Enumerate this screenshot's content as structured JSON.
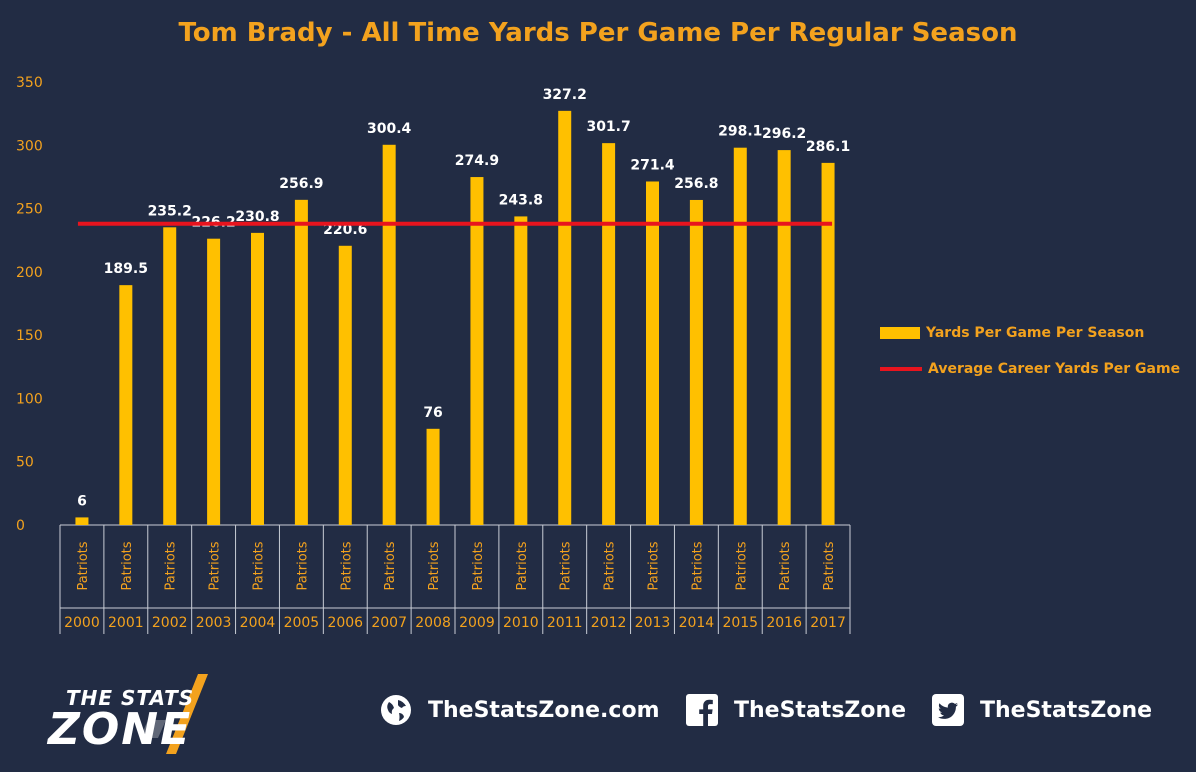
{
  "chart_data": {
    "type": "bar",
    "title": "Tom Brady - All Time Yards Per Game Per Regular Season",
    "categories": [
      "2000",
      "2001",
      "2002",
      "2003",
      "2004",
      "2005",
      "2006",
      "2007",
      "2008",
      "2009",
      "2010",
      "2011",
      "2012",
      "2013",
      "2014",
      "2015",
      "2016",
      "2017"
    ],
    "category_sublabels": [
      "Patriots",
      "Patriots",
      "Patriots",
      "Patriots",
      "Patriots",
      "Patriots",
      "Patriots",
      "Patriots",
      "Patriots",
      "Patriots",
      "Patriots",
      "Patriots",
      "Patriots",
      "Patriots",
      "Patriots",
      "Patriots",
      "Patriots",
      "Patriots"
    ],
    "series": [
      {
        "name": "Yards Per Game Per Season",
        "type": "bar",
        "color": "#ffc000",
        "values": [
          6,
          189.5,
          235.2,
          226.2,
          230.8,
          256.9,
          220.6,
          300.4,
          76,
          274.9,
          243.8,
          327.2,
          301.7,
          271.4,
          256.8,
          298.1,
          296.2,
          286.1
        ],
        "labels": [
          "6",
          "189.5",
          "235.2",
          "226.2",
          "230.8",
          "256.9",
          "220.6",
          "300.4",
          "76",
          "274.9",
          "243.8",
          "327.2",
          "301.7",
          "271.4",
          "256.8",
          "298.1",
          "296.2",
          "286.1"
        ]
      },
      {
        "name": "Average Career Yards Per Game",
        "type": "line",
        "color": "#e8141e",
        "value": 238
      }
    ],
    "yticks": [
      "0",
      "50",
      "100",
      "150",
      "200",
      "250",
      "300",
      "350"
    ],
    "ylim": [
      0,
      350
    ],
    "legend_position": "right",
    "grid": false
  },
  "footer": {
    "logo": {
      "line1": "THE STATS",
      "line2": "ZONE"
    },
    "website": "TheStatsZone.com",
    "facebook": "TheStatsZone",
    "twitter": "TheStatsZone",
    "icons": [
      "globe-icon",
      "facebook-icon",
      "twitter-icon"
    ]
  }
}
